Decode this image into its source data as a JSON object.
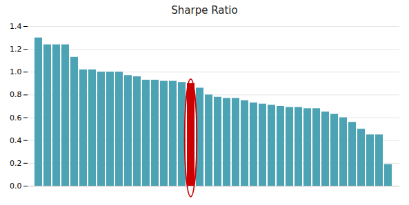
{
  "chart_data": {
    "type": "bar",
    "title": "Sharpe Ratio",
    "categories": [
      null,
      null,
      null,
      null,
      null,
      null,
      null,
      null,
      null,
      null,
      null,
      null,
      null,
      null,
      null,
      null,
      null,
      null,
      null,
      null,
      null,
      null,
      null,
      null,
      null,
      null,
      null,
      null,
      null,
      null,
      null,
      null,
      null,
      null,
      null,
      null,
      null,
      null,
      null,
      null
    ],
    "values": [
      1.3,
      1.24,
      1.24,
      1.24,
      1.13,
      1.02,
      1.02,
      1.0,
      1.0,
      1.0,
      0.97,
      0.96,
      0.93,
      0.93,
      0.92,
      0.92,
      0.91,
      0.9,
      0.86,
      0.8,
      0.78,
      0.77,
      0.77,
      0.75,
      0.73,
      0.72,
      0.71,
      0.7,
      0.69,
      0.69,
      0.68,
      0.68,
      0.65,
      0.63,
      0.6,
      0.56,
      0.5,
      0.45,
      0.45,
      0.19
    ],
    "colors": [
      "#4BA3B4",
      "#4BA3B4",
      "#4BA3B4",
      "#4BA3B4",
      "#4BA3B4",
      "#4BA3B4",
      "#4BA3B4",
      "#4BA3B4",
      "#4BA3B4",
      "#4BA3B4",
      "#4BA3B4",
      "#4BA3B4",
      "#4BA3B4",
      "#4BA3B4",
      "#4BA3B4",
      "#4BA3B4",
      "#4BA3B4",
      "#CC0000",
      "#4BA3B4",
      "#4BA3B4",
      "#4BA3B4",
      "#4BA3B4",
      "#4BA3B4",
      "#4BA3B4",
      "#4BA3B4",
      "#4BA3B4",
      "#4BA3B4",
      "#4BA3B4",
      "#4BA3B4",
      "#4BA3B4",
      "#4BA3B4",
      "#4BA3B4",
      "#4BA3B4",
      "#4BA3B4",
      "#4BA3B4",
      "#4BA3B4",
      "#4BA3B4",
      "#4BA3B4",
      "#4BA3B4",
      "#4BA3B4"
    ],
    "ylim": [
      0,
      1.4
    ],
    "yticks": [
      {
        "value": 0,
        "label": "0.0"
      },
      0.2,
      0.4,
      0.6,
      0.8,
      {
        "value": 1,
        "label": "1.0"
      },
      1.2,
      1.4
    ],
    "grid": true,
    "tick_labels": "y"
  }
}
